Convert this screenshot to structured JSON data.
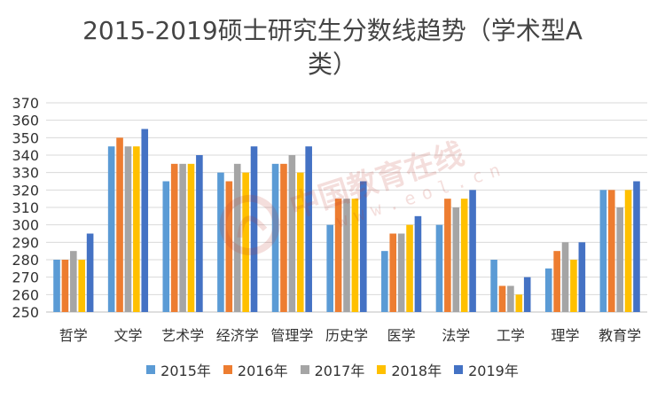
{
  "chart_data": {
    "type": "bar",
    "title": "2015-2019硕士研究生分数线趋势（学术型A类）",
    "title_lines": [
      "2015-2019硕士研究生分数线趋势（学术型A",
      "类）"
    ],
    "categories": [
      "哲学",
      "文学",
      "艺术学",
      "经济学",
      "管理学",
      "历史学",
      "医学",
      "法学",
      "工学",
      "理学",
      "教育学"
    ],
    "series": [
      {
        "name": "2015年",
        "color": "#5B9BD5",
        "values": [
          280,
          345,
          325,
          330,
          335,
          300,
          285,
          300,
          280,
          275,
          320
        ]
      },
      {
        "name": "2016年",
        "color": "#ED7D31",
        "values": [
          280,
          350,
          335,
          325,
          335,
          315,
          295,
          315,
          265,
          285,
          320
        ]
      },
      {
        "name": "2017年",
        "color": "#A5A5A5",
        "values": [
          285,
          345,
          335,
          335,
          340,
          315,
          295,
          310,
          265,
          290,
          310
        ]
      },
      {
        "name": "2018年",
        "color": "#FFC000",
        "values": [
          280,
          345,
          335,
          330,
          330,
          315,
          300,
          315,
          260,
          280,
          320
        ]
      },
      {
        "name": "2019年",
        "color": "#4472C4",
        "values": [
          295,
          355,
          340,
          345,
          345,
          325,
          305,
          320,
          270,
          290,
          325
        ]
      }
    ],
    "ylim": [
      250,
      370
    ],
    "ytick_step": 10,
    "yticks": [
      "250",
      "260",
      "270",
      "280",
      "290",
      "300",
      "310",
      "320",
      "330",
      "340",
      "350",
      "360",
      "370"
    ],
    "grid": true,
    "legend_position": "bottom",
    "xlabel": "",
    "ylabel": ""
  },
  "watermark": {
    "text": "中国教育在线",
    "sub": "www.eol.cn"
  }
}
